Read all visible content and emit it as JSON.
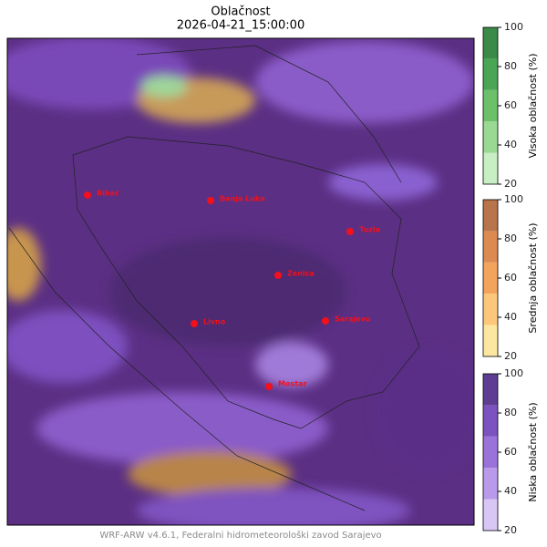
{
  "title": "Oblačnost",
  "subtitle": "2026-04-21_15:00:00",
  "cities": [
    "Bihać",
    "Banja Luka",
    "Tuzla",
    "Zenica",
    "Livno",
    "Sarajevo",
    "Mostar"
  ],
  "colorbars": [
    {
      "label": "Visoka oblačnost (%)",
      "lim": [
        20,
        100
      ],
      "ticks": [
        20,
        40,
        60,
        80,
        100
      ],
      "colors": [
        "#c8eec4",
        "#9ad993",
        "#6cc06a",
        "#4aa655",
        "#3b8a48"
      ]
    },
    {
      "label": "Srednja oblačnost (%)",
      "lim": [
        20,
        100
      ],
      "ticks": [
        20,
        40,
        60,
        80,
        100
      ],
      "colors": [
        "#fde7a0",
        "#fcc77a",
        "#f2a35c",
        "#dc8a52",
        "#b8744a"
      ]
    },
    {
      "label": "Niska oblačnost (%)",
      "lim": [
        20,
        100
      ],
      "ticks": [
        20,
        40,
        60,
        80,
        100
      ],
      "colors": [
        "#d8c6f4",
        "#b99aea",
        "#9a72d9",
        "#7b52bf",
        "#5e3d92"
      ]
    }
  ],
  "credit": "WRF-ARW v4.6.1, Federalni hidrometeorološki zavod Sarajevo"
}
